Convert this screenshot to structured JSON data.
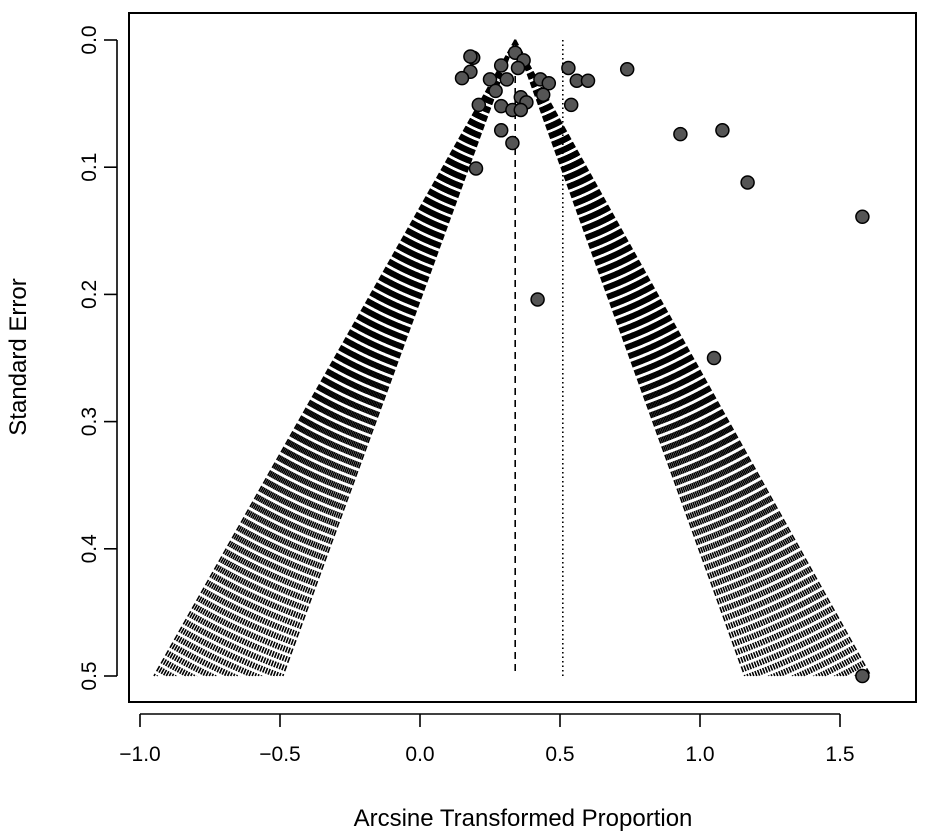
{
  "chart_data": {
    "type": "scatter",
    "title": "",
    "xlabel": "Arcsine Transformed Proportion",
    "ylabel": "Standard Error",
    "xlim": [
      -1.0,
      1.75
    ],
    "ylim": [
      0.5,
      0.0
    ],
    "y_axis_reversed": true,
    "x_ticks": [
      "−1.0",
      "−0.5",
      "0.0",
      "0.5",
      "1.0",
      "1.5"
    ],
    "x_tick_values": [
      -1.0,
      -0.5,
      0.0,
      0.5,
      1.0,
      1.5
    ],
    "y_ticks": [
      "0.0",
      "0.1",
      "0.2",
      "0.3",
      "0.4",
      "0.5"
    ],
    "y_tick_values": [
      0.0,
      0.1,
      0.2,
      0.3,
      0.4,
      0.5
    ],
    "grid": false,
    "point_color": "#555555",
    "funnel_center": 0.34,
    "funnel_apex_se": 0.0,
    "funnel_base_se": 0.5,
    "funnel_band": [
      {
        "side": "left",
        "inner_x_at_base": -0.49,
        "outer_x_at_base": -0.95
      },
      {
        "side": "right",
        "inner_x_at_base": 1.16,
        "outer_x_at_base": 1.61
      }
    ],
    "reference_lines": [
      {
        "x": 0.34,
        "style": "dashed"
      },
      {
        "x": 0.51,
        "style": "dotted"
      }
    ],
    "points": [
      {
        "x": 0.34,
        "y": 0.01
      },
      {
        "x": 0.19,
        "y": 0.014
      },
      {
        "x": 0.18,
        "y": 0.013
      },
      {
        "x": 0.37,
        "y": 0.016
      },
      {
        "x": 0.29,
        "y": 0.02
      },
      {
        "x": 0.35,
        "y": 0.022
      },
      {
        "x": 0.53,
        "y": 0.022
      },
      {
        "x": 0.74,
        "y": 0.023
      },
      {
        "x": 0.18,
        "y": 0.025
      },
      {
        "x": 0.15,
        "y": 0.03
      },
      {
        "x": 0.25,
        "y": 0.031
      },
      {
        "x": 0.31,
        "y": 0.031
      },
      {
        "x": 0.43,
        "y": 0.031
      },
      {
        "x": 0.56,
        "y": 0.032
      },
      {
        "x": 0.6,
        "y": 0.032
      },
      {
        "x": 0.46,
        "y": 0.034
      },
      {
        "x": 0.27,
        "y": 0.04
      },
      {
        "x": 0.44,
        "y": 0.043
      },
      {
        "x": 0.36,
        "y": 0.045
      },
      {
        "x": 0.38,
        "y": 0.049
      },
      {
        "x": 0.21,
        "y": 0.051
      },
      {
        "x": 0.54,
        "y": 0.051
      },
      {
        "x": 0.29,
        "y": 0.052
      },
      {
        "x": 0.33,
        "y": 0.055
      },
      {
        "x": 0.36,
        "y": 0.055
      },
      {
        "x": 0.29,
        "y": 0.071
      },
      {
        "x": 1.08,
        "y": 0.071
      },
      {
        "x": 0.93,
        "y": 0.074
      },
      {
        "x": 0.33,
        "y": 0.081
      },
      {
        "x": 0.2,
        "y": 0.101
      },
      {
        "x": 1.17,
        "y": 0.112
      },
      {
        "x": 1.58,
        "y": 0.139
      },
      {
        "x": 0.42,
        "y": 0.204
      },
      {
        "x": 1.05,
        "y": 0.25
      },
      {
        "x": 1.58,
        "y": 0.5
      }
    ]
  }
}
